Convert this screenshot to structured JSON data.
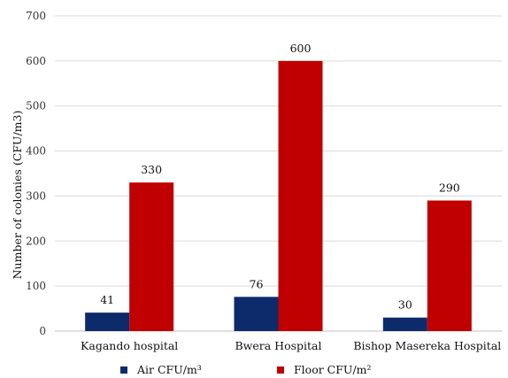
{
  "chart_data": {
    "type": "bar",
    "title": "",
    "xlabel": "",
    "ylabel": "Number of colonies (CFU/m3)",
    "ylim": [
      0,
      700
    ],
    "ytick_step": 100,
    "yticks": [
      "0",
      "100",
      "200",
      "300",
      "400",
      "500",
      "600",
      "700"
    ],
    "grid": true,
    "legend_position": "bottom",
    "categories": [
      "Kagando hospital",
      "Bwera Hospital",
      "Bishop Masereka Hospital"
    ],
    "series": [
      {
        "name": "Air CFU/m³",
        "color": "#0d2a6b",
        "values": [
          41,
          76,
          30
        ]
      },
      {
        "name": "Floor CFU/m²",
        "color": "#c00000",
        "values": [
          330,
          600,
          290
        ]
      }
    ]
  }
}
